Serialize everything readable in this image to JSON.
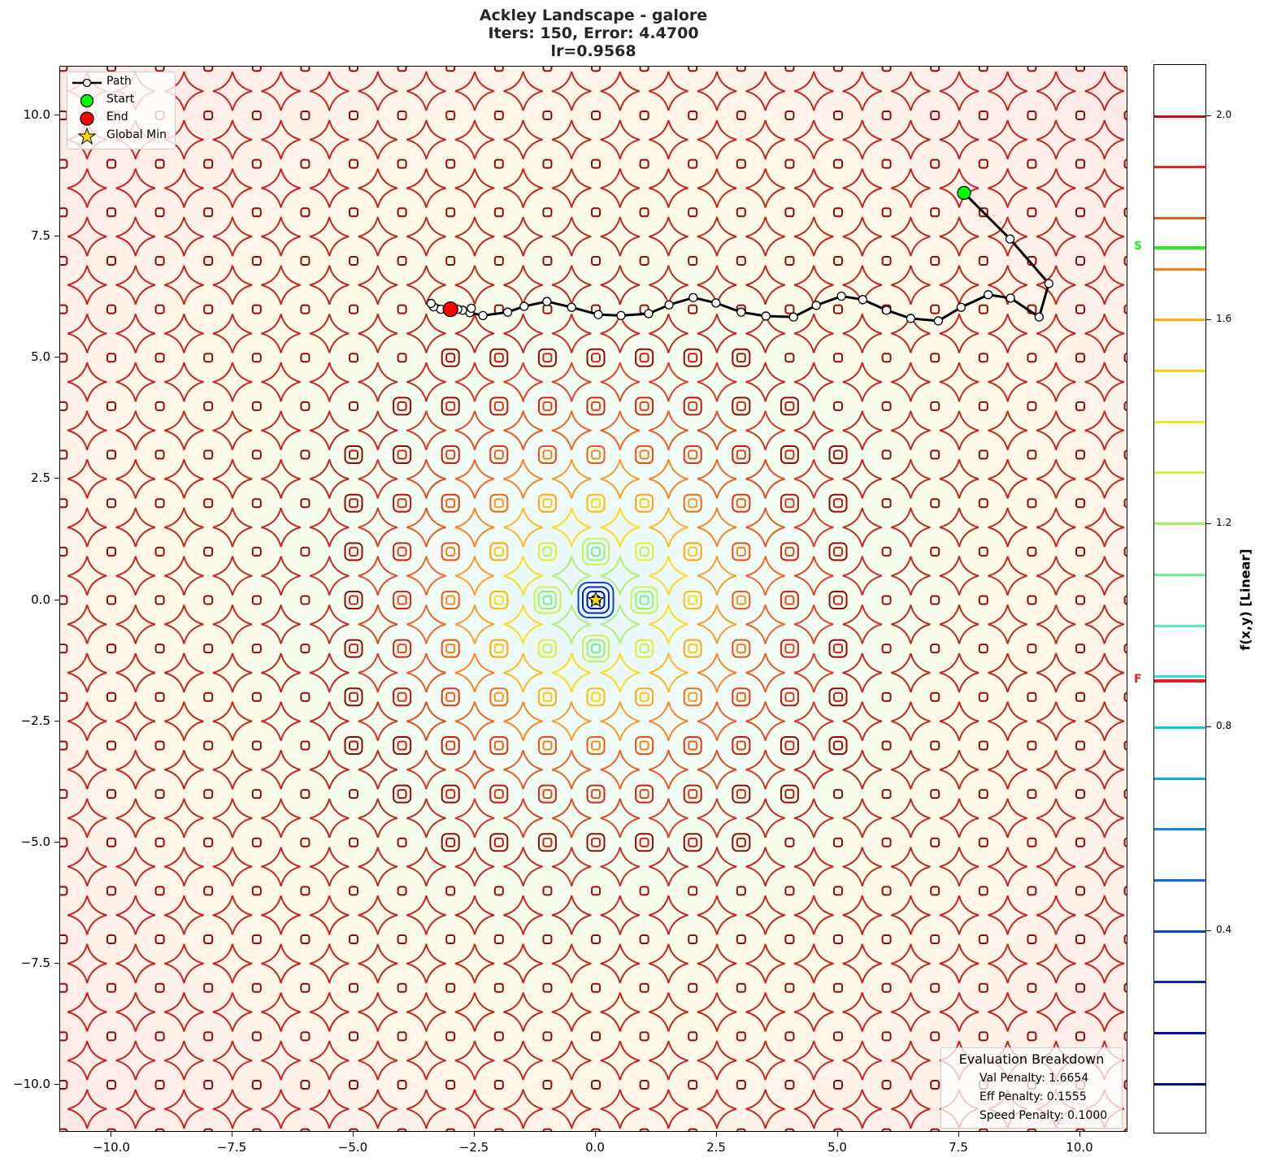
{
  "title": {
    "line1": "Ackley Landscape - galore",
    "line2": "Iters: 150, Error: 4.4700",
    "line3": "lr=0.9568"
  },
  "legend": {
    "items": [
      {
        "label": "Path",
        "symbol": "line-with-white-circle",
        "color": "#000000"
      },
      {
        "label": "Start",
        "symbol": "circle",
        "color": "#00ff00"
      },
      {
        "label": "End",
        "symbol": "circle",
        "color": "#ff0000"
      },
      {
        "label": "Global Min",
        "symbol": "star",
        "color": "#ffd700"
      }
    ]
  },
  "evaluation": {
    "header": "Evaluation Breakdown",
    "val_penalty": "Val Penalty: 1.6654",
    "eff_penalty": "Eff Penalty: 0.1555",
    "speed_penalty": "Speed Penalty: 0.1000"
  },
  "colorbar": {
    "label": "f(x,y) [Linear]",
    "ticks": [
      "2.0",
      "1.6",
      "1.2",
      "0.8",
      "0.4"
    ],
    "start_marker": {
      "label": "S",
      "value": 1.74,
      "color": "#22ee22"
    },
    "final_marker": {
      "label": "F",
      "value": 0.89,
      "color": "#e02020"
    }
  },
  "x_ticks": [
    "−10.0",
    "−7.5",
    "−5.0",
    "−2.5",
    "0.0",
    "2.5",
    "5.0",
    "7.5",
    "10.0"
  ],
  "y_ticks": [
    "10.0",
    "7.5",
    "5.0",
    "2.5",
    "0.0",
    "−2.5",
    "−5.0",
    "−7.5",
    "−10.0"
  ],
  "chart_data": {
    "type": "contour",
    "title": "Ackley Landscape - galore\nIters: 150, Error: 4.4700\nlr=0.9568",
    "xlabel": "",
    "ylabel": "",
    "xlim": [
      -11,
      11
    ],
    "ylim": [
      -11,
      11
    ],
    "x_ticks": [
      -10.0,
      -7.5,
      -5.0,
      -2.5,
      0.0,
      2.5,
      5.0,
      7.5,
      10.0
    ],
    "y_ticks": [
      -10.0,
      -7.5,
      -5.0,
      -2.5,
      0.0,
      2.5,
      5.0,
      7.5,
      10.0
    ],
    "function": "Ackley (log/normalized scale, contour lines colored by jet-like colormap)",
    "colorbar": {
      "label": "f(x,y) [Linear]",
      "range": [
        0.0,
        2.1
      ],
      "ticks": [
        0.4,
        0.8,
        1.2,
        1.6,
        2.0
      ],
      "levels_step": 0.1
    },
    "global_min": {
      "x": 0.0,
      "y": 0.0
    },
    "start": {
      "x": 7.6,
      "y": 8.4
    },
    "end": {
      "x": -3.0,
      "y": 6.0
    },
    "path": [
      {
        "x": 7.6,
        "y": 8.4
      },
      {
        "x": 8.55,
        "y": 7.45
      },
      {
        "x": 9.35,
        "y": 6.53
      },
      {
        "x": 9.15,
        "y": 5.84
      },
      {
        "x": 8.56,
        "y": 6.23
      },
      {
        "x": 8.1,
        "y": 6.3
      },
      {
        "x": 7.54,
        "y": 6.04
      },
      {
        "x": 7.07,
        "y": 5.76
      },
      {
        "x": 6.5,
        "y": 5.81
      },
      {
        "x": 6.0,
        "y": 5.98
      },
      {
        "x": 5.51,
        "y": 6.2
      },
      {
        "x": 5.07,
        "y": 6.27
      },
      {
        "x": 4.55,
        "y": 6.08
      },
      {
        "x": 4.08,
        "y": 5.84
      },
      {
        "x": 3.51,
        "y": 5.86
      },
      {
        "x": 3.0,
        "y": 5.94
      },
      {
        "x": 2.48,
        "y": 6.13
      },
      {
        "x": 2.01,
        "y": 6.24
      },
      {
        "x": 1.51,
        "y": 6.09
      },
      {
        "x": 1.09,
        "y": 5.91
      },
      {
        "x": 0.52,
        "y": 5.87
      },
      {
        "x": 0.05,
        "y": 5.89
      },
      {
        "x": -0.5,
        "y": 6.04
      },
      {
        "x": -1.01,
        "y": 6.16
      },
      {
        "x": -1.48,
        "y": 6.06
      },
      {
        "x": -1.82,
        "y": 5.94
      },
      {
        "x": -2.33,
        "y": 5.87
      },
      {
        "x": -2.6,
        "y": 5.93
      },
      {
        "x": -2.57,
        "y": 6.02
      },
      {
        "x": -2.75,
        "y": 5.98
      },
      {
        "x": -2.85,
        "y": 6.0
      },
      {
        "x": -3.0,
        "y": 6.0
      },
      {
        "x": -3.2,
        "y": 6.0
      },
      {
        "x": -3.35,
        "y": 6.05
      },
      {
        "x": -3.4,
        "y": 6.12
      },
      {
        "x": -3.0,
        "y": 6.0
      }
    ],
    "legend": [
      "Path",
      "Start",
      "End",
      "Global Min"
    ],
    "annotations": {
      "evaluation_breakdown": {
        "Val Penalty": 1.6654,
        "Eff Penalty": 0.1555,
        "Speed Penalty": 0.1
      },
      "iters": 150,
      "error": 4.47,
      "lr": 0.9568
    }
  }
}
